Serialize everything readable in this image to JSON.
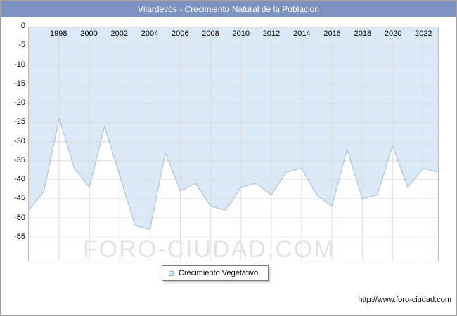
{
  "window": {
    "title": "Vilardevós - Crecimiento Natural de la Poblacion"
  },
  "watermark": "FORO-CIUDAD.COM",
  "legend": {
    "label": "Crecimiento Vegetativo"
  },
  "footer": {
    "url": "http://www.foro-ciudad.com"
  },
  "colors": {
    "titlebar": "#7d92c0",
    "area_fill": "#dbe9f7",
    "line": "#a9c4de",
    "grid": "#dcdcdc",
    "watermark": "#e2e2e2",
    "legend_marker_border": "#8fb2d6",
    "legend_marker_fill": "#dcebf8"
  },
  "chart_data": {
    "type": "area",
    "title": "Vilardevós - Crecimiento Natural de la Poblacion",
    "xlabel": "",
    "ylabel": "",
    "ylim": [
      -55,
      0
    ],
    "grid": true,
    "legend_position": "bottom",
    "x": [
      1996,
      1997,
      1998,
      1999,
      2000,
      2001,
      2002,
      2003,
      2004,
      2005,
      2006,
      2007,
      2008,
      2009,
      2010,
      2011,
      2012,
      2013,
      2014,
      2015,
      2016,
      2017,
      2018,
      2019,
      2020,
      2021,
      2022,
      2023
    ],
    "series": [
      {
        "name": "Crecimiento Vegetativo",
        "values": [
          -48,
          -43,
          -24,
          -37,
          -42,
          -26,
          -39,
          -52,
          -53,
          -33,
          -43,
          -41,
          -47,
          -48,
          -42,
          -41,
          -44,
          -38,
          -37,
          -44,
          -47,
          -32,
          -45,
          -44,
          -31,
          -42,
          -37,
          -38
        ]
      }
    ],
    "x_ticks": [
      1998,
      2000,
      2002,
      2004,
      2006,
      2008,
      2010,
      2012,
      2014,
      2016,
      2018,
      2020,
      2022
    ],
    "y_ticks": [
      0,
      -5,
      -10,
      -15,
      -20,
      -25,
      -30,
      -35,
      -40,
      -45,
      -50,
      -55
    ]
  }
}
